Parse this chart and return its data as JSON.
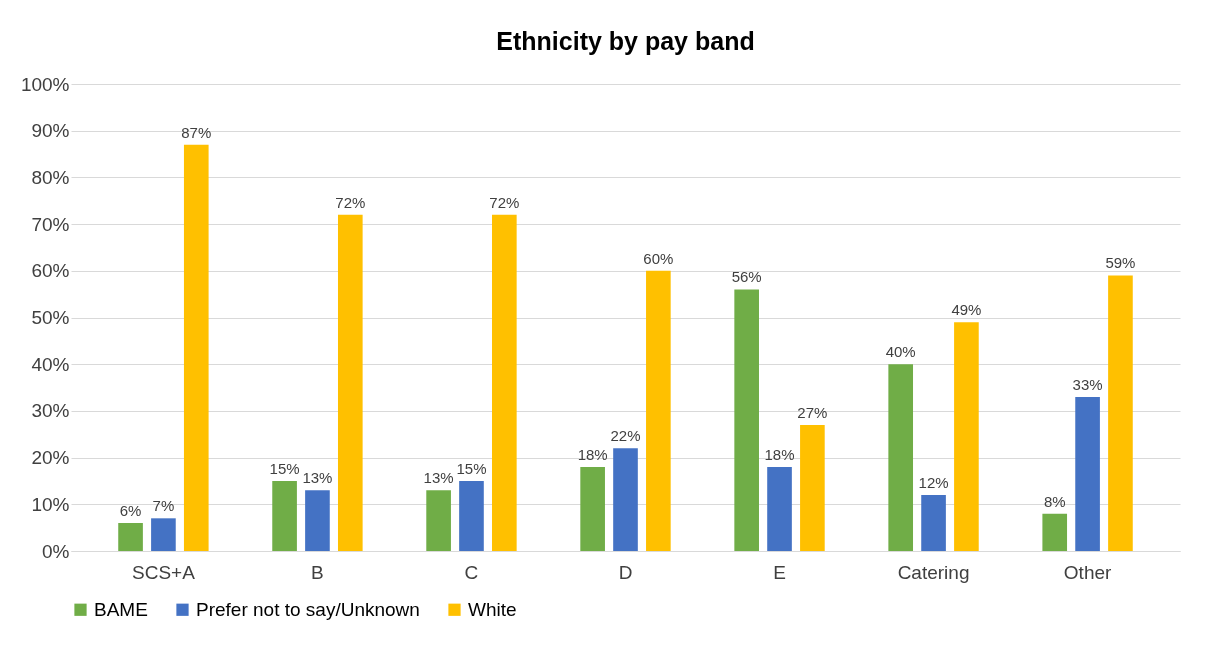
{
  "chart_data": {
    "type": "bar",
    "title": "Ethnicity by pay band",
    "categories": [
      "SCS+A",
      "B",
      "C",
      "D",
      "E",
      "Catering",
      "Other"
    ],
    "series": [
      {
        "name": "BAME",
        "color": "#70ad47",
        "values": [
          6,
          15,
          13,
          18,
          56,
          40,
          8
        ],
        "value_labels": [
          "6%",
          "15%",
          "13%",
          "18%",
          "56%",
          "40%",
          "8%"
        ]
      },
      {
        "name": "Prefer not to say/Unknown",
        "color": "#4472c4",
        "values": [
          7,
          13,
          15,
          22,
          18,
          12,
          33
        ],
        "value_labels": [
          "7%",
          "13%",
          "15%",
          "22%",
          "18%",
          "12%",
          "33%"
        ]
      },
      {
        "name": "White",
        "color": "#ffc000",
        "values": [
          87,
          72,
          72,
          60,
          27,
          49,
          59
        ],
        "value_labels": [
          "87%",
          "72%",
          "72%",
          "60%",
          "27%",
          "49%",
          "59%"
        ]
      }
    ],
    "ylim": [
      0,
      100
    ],
    "yticks": [
      {
        "value": 0,
        "label": "0%"
      },
      {
        "value": 10,
        "label": "10%"
      },
      {
        "value": 20,
        "label": "20%"
      },
      {
        "value": 30,
        "label": "30%"
      },
      {
        "value": 40,
        "label": "40%"
      },
      {
        "value": 50,
        "label": "50%"
      },
      {
        "value": 60,
        "label": "60%"
      },
      {
        "value": 70,
        "label": "70%"
      },
      {
        "value": 80,
        "label": "80%"
      },
      {
        "value": 90,
        "label": "90%"
      },
      {
        "value": 100,
        "label": "100%"
      }
    ],
    "grid": "y",
    "legend": "bottom"
  }
}
